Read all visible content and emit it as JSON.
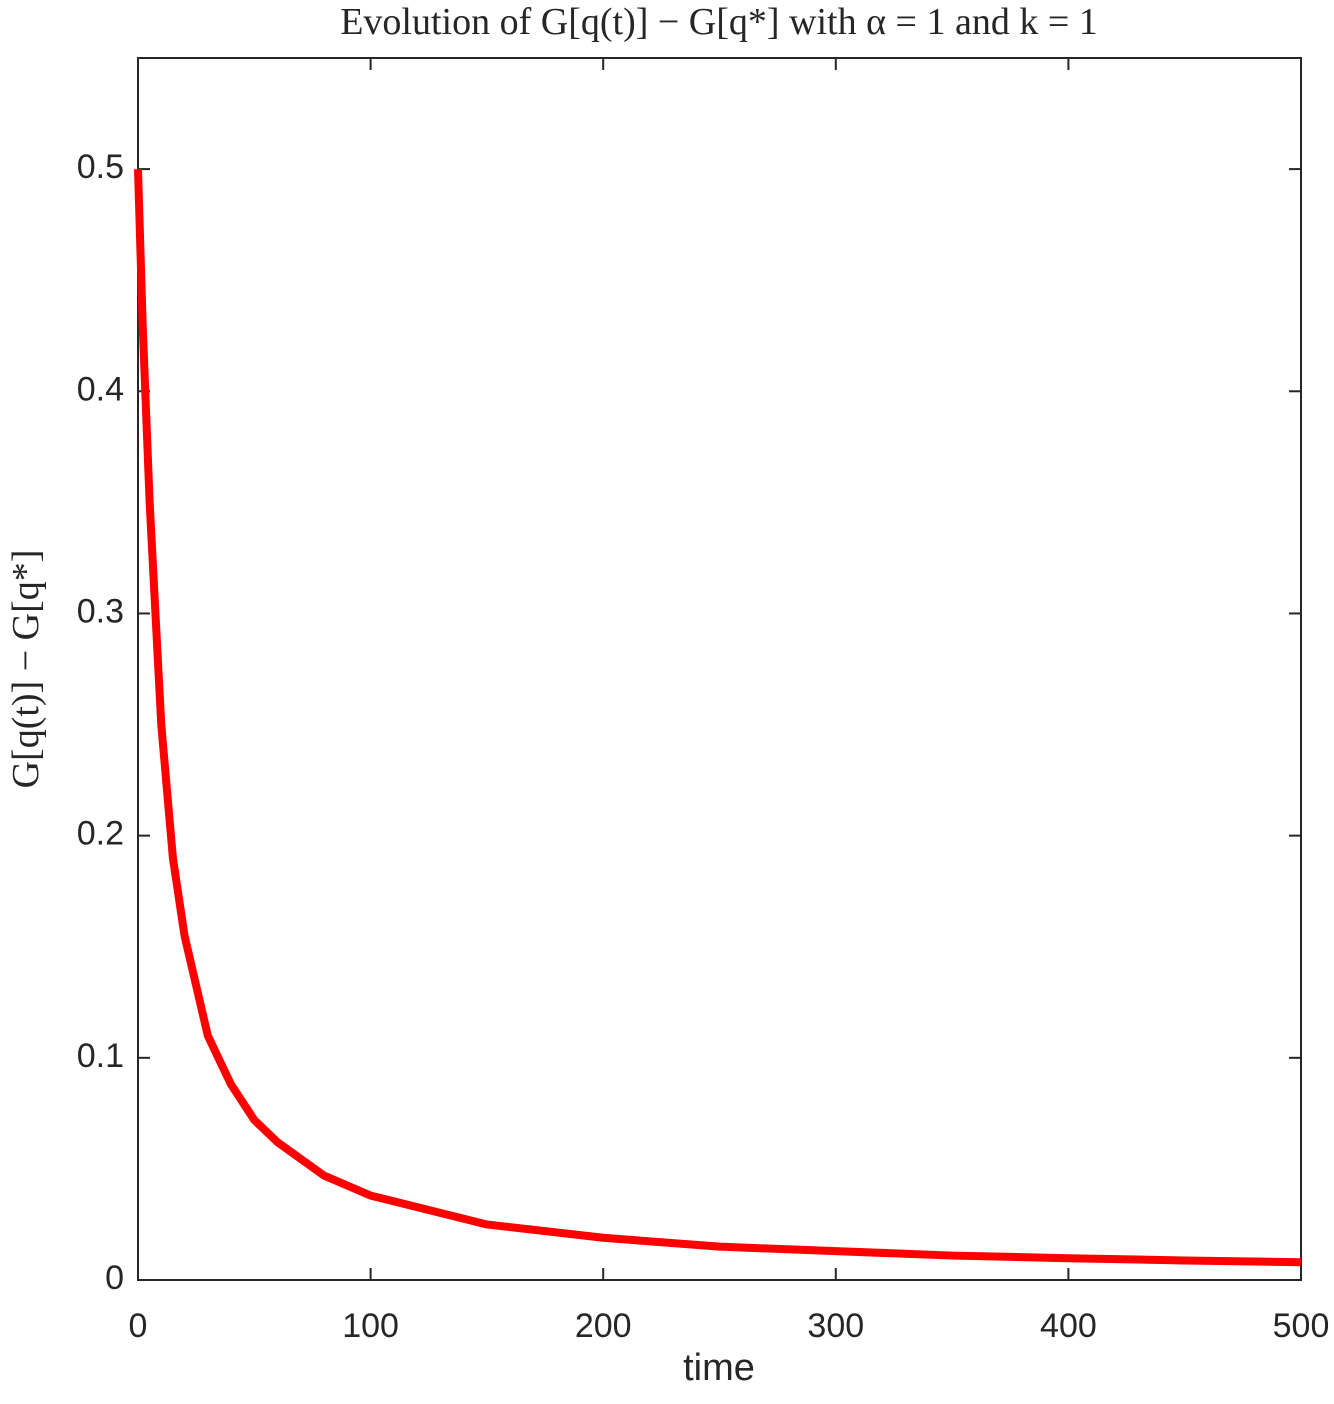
{
  "chart_data": {
    "type": "line",
    "title": "Evolution of G[q(t)] − G[q*] with α = 1 and k = 1",
    "x_label": "time",
    "y_label": "G[q(t)] − G[q*]",
    "x": [
      0,
      2,
      5,
      10,
      15,
      20,
      30,
      40,
      50,
      60,
      80,
      100,
      150,
      200,
      250,
      300,
      350,
      400,
      450,
      500
    ],
    "series": [
      {
        "name": "G[q(t)] − G[q*]",
        "color": "#ff0000",
        "values": [
          0.5,
          0.43,
          0.35,
          0.25,
          0.19,
          0.155,
          0.11,
          0.088,
          0.072,
          0.062,
          0.047,
          0.038,
          0.025,
          0.019,
          0.015,
          0.013,
          0.011,
          0.0098,
          0.0088,
          0.008
        ]
      }
    ],
    "xlim": [
      0,
      500
    ],
    "xticks": [
      0,
      100,
      200,
      300,
      400,
      500
    ],
    "ylim": [
      0,
      0.55
    ],
    "yticks": [
      0,
      0.1,
      0.2,
      0.3,
      0.4,
      0.5
    ],
    "grid": false
  }
}
